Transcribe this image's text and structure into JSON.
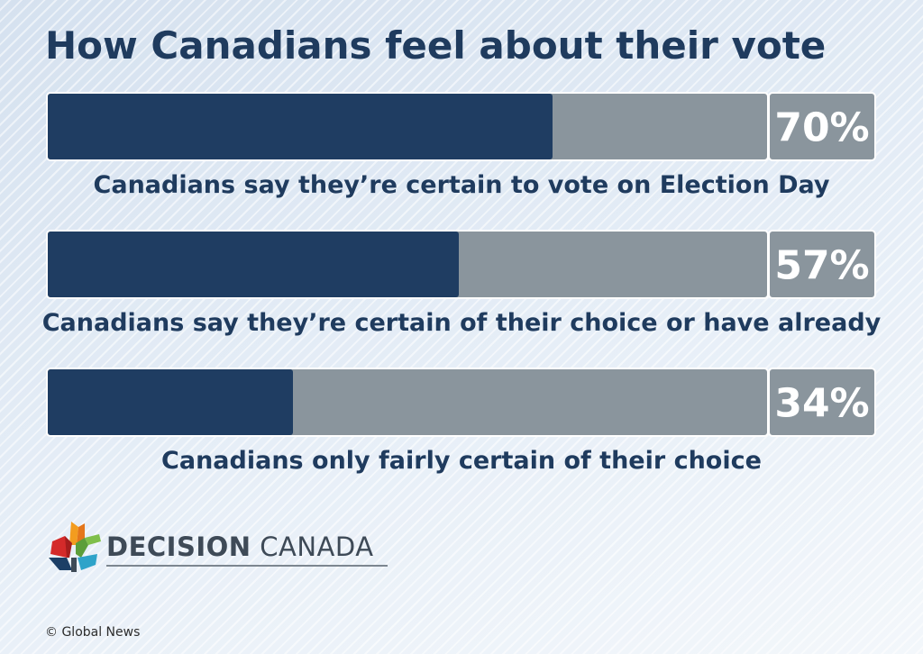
{
  "chart_data": {
    "type": "bar",
    "title": "How Canadians feel about their vote",
    "categories": [
      "Canadians say they’re certain to vote on Election Day",
      "Canadians say they’re certain of their choice or have already",
      "Canadians only fairly certain of their choice"
    ],
    "values": [
      70,
      57,
      34
    ],
    "value_labels": [
      "70%",
      "57%",
      "34%"
    ],
    "ylim": [
      0,
      100
    ],
    "orientation": "horizontal",
    "grid": false,
    "colors": {
      "fill": "#1f3d62",
      "track": "#8a959d",
      "badge": "#8a959d",
      "badge_text": "#ffffff",
      "border": "#ffffff"
    }
  },
  "branding": {
    "logo_word_1": "DECISION",
    "logo_word_2": " CANADA",
    "logo_icon": "maple-leaf-icon",
    "credit": "© Global News"
  }
}
